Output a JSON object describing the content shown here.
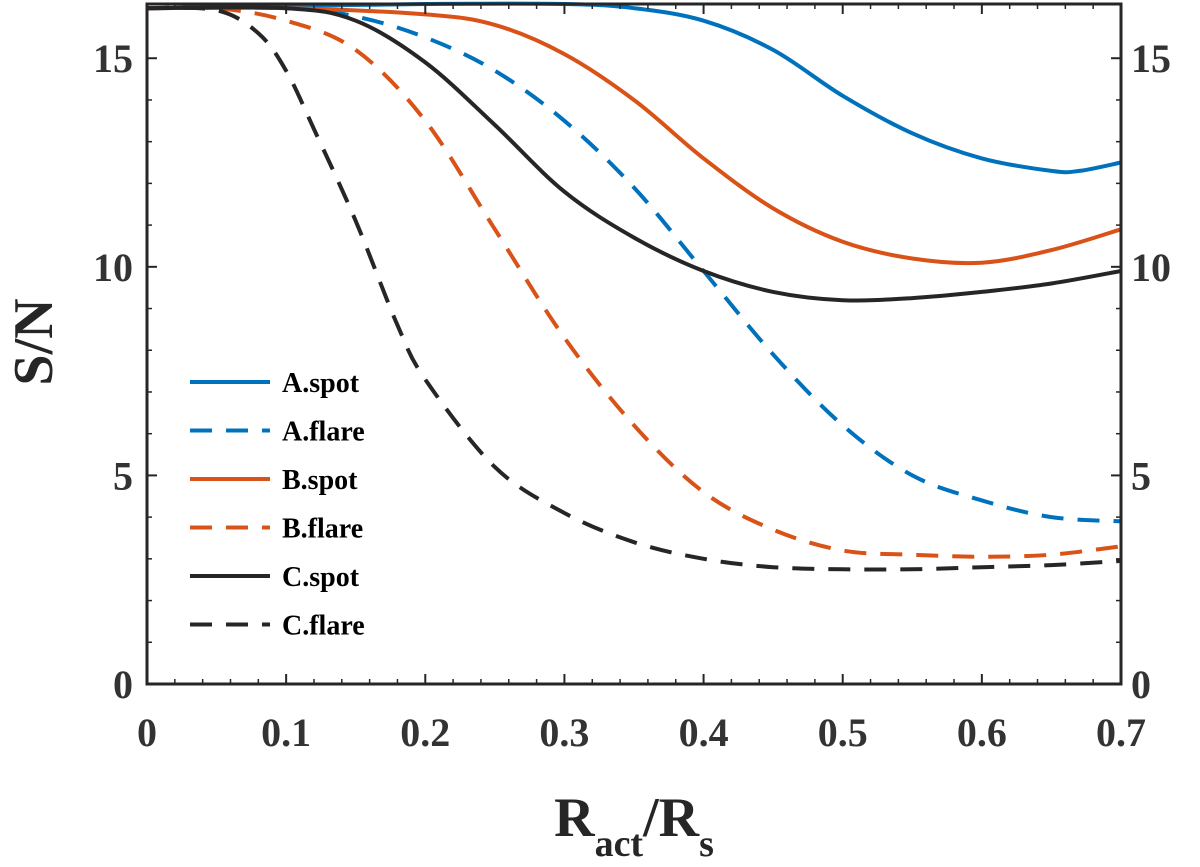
{
  "chart_data": {
    "type": "line",
    "title": "",
    "xlabel": {
      "main": "R",
      "main_sub": "act",
      "slash": "/R",
      "slash_sub": "s"
    },
    "ylabel": "S/N",
    "xlim": [
      0,
      0.7
    ],
    "ylim": [
      0,
      16.3
    ],
    "x_ticks": [
      0,
      0.1,
      0.2,
      0.3,
      0.4,
      0.5,
      0.6,
      0.7
    ],
    "x_tick_labels": [
      "0",
      "0.1",
      "0.2",
      "0.3",
      "0.4",
      "0.5",
      "0.6",
      "0.7"
    ],
    "y_ticks": [
      0,
      5,
      10,
      15
    ],
    "y_tick_labels": [
      "0",
      "5",
      "10",
      "15"
    ],
    "y_right_tick_labels": [
      "0",
      "5",
      "10",
      "15"
    ],
    "grid": false,
    "legend_position": "lower-left",
    "series": [
      {
        "name": "A.spot",
        "color": "#0072BD",
        "dash": "solid",
        "points": [
          [
            0,
            16.2
          ],
          [
            0.1,
            16.25
          ],
          [
            0.2,
            16.3
          ],
          [
            0.3,
            16.3
          ],
          [
            0.35,
            16.2
          ],
          [
            0.4,
            15.9
          ],
          [
            0.45,
            15.2
          ],
          [
            0.5,
            14.1
          ],
          [
            0.55,
            13.2
          ],
          [
            0.6,
            12.6
          ],
          [
            0.65,
            12.3
          ],
          [
            0.67,
            12.3
          ],
          [
            0.7,
            12.5
          ]
        ]
      },
      {
        "name": "A.flare",
        "color": "#0072BD",
        "dash": "dashed",
        "points": [
          [
            0,
            16.2
          ],
          [
            0.1,
            16.2
          ],
          [
            0.15,
            16.0
          ],
          [
            0.2,
            15.5
          ],
          [
            0.25,
            14.7
          ],
          [
            0.3,
            13.5
          ],
          [
            0.35,
            11.9
          ],
          [
            0.4,
            9.9
          ],
          [
            0.45,
            7.9
          ],
          [
            0.5,
            6.2
          ],
          [
            0.55,
            5.0
          ],
          [
            0.6,
            4.4
          ],
          [
            0.65,
            4.0
          ],
          [
            0.7,
            3.9
          ]
        ]
      },
      {
        "name": "B.spot",
        "color": "#D95319",
        "dash": "solid",
        "points": [
          [
            0,
            16.2
          ],
          [
            0.1,
            16.2
          ],
          [
            0.2,
            16.05
          ],
          [
            0.25,
            15.8
          ],
          [
            0.3,
            15.1
          ],
          [
            0.35,
            14.0
          ],
          [
            0.4,
            12.6
          ],
          [
            0.45,
            11.4
          ],
          [
            0.5,
            10.6
          ],
          [
            0.55,
            10.2
          ],
          [
            0.6,
            10.1
          ],
          [
            0.65,
            10.4
          ],
          [
            0.7,
            10.9
          ]
        ]
      },
      {
        "name": "B.flare",
        "color": "#D95319",
        "dash": "dashed",
        "points": [
          [
            0,
            16.2
          ],
          [
            0.05,
            16.2
          ],
          [
            0.1,
            15.9
          ],
          [
            0.15,
            15.2
          ],
          [
            0.2,
            13.5
          ],
          [
            0.25,
            10.9
          ],
          [
            0.3,
            8.3
          ],
          [
            0.35,
            6.2
          ],
          [
            0.4,
            4.6
          ],
          [
            0.45,
            3.7
          ],
          [
            0.5,
            3.2
          ],
          [
            0.55,
            3.1
          ],
          [
            0.6,
            3.05
          ],
          [
            0.65,
            3.1
          ],
          [
            0.7,
            3.3
          ]
        ]
      },
      {
        "name": "C.spot",
        "color": "#262626",
        "dash": "solid",
        "points": [
          [
            0,
            16.2
          ],
          [
            0.1,
            16.2
          ],
          [
            0.15,
            15.9
          ],
          [
            0.2,
            14.9
          ],
          [
            0.25,
            13.4
          ],
          [
            0.3,
            11.8
          ],
          [
            0.35,
            10.7
          ],
          [
            0.4,
            9.9
          ],
          [
            0.45,
            9.4
          ],
          [
            0.5,
            9.2
          ],
          [
            0.55,
            9.25
          ],
          [
            0.6,
            9.4
          ],
          [
            0.65,
            9.6
          ],
          [
            0.7,
            9.9
          ]
        ]
      },
      {
        "name": "C.flare",
        "color": "#262626",
        "dash": "dashed",
        "points": [
          [
            0,
            16.2
          ],
          [
            0.05,
            16.15
          ],
          [
            0.08,
            15.6
          ],
          [
            0.1,
            14.7
          ],
          [
            0.12,
            13.3
          ],
          [
            0.15,
            11.1
          ],
          [
            0.18,
            8.6
          ],
          [
            0.2,
            7.3
          ],
          [
            0.25,
            5.2
          ],
          [
            0.3,
            4.1
          ],
          [
            0.35,
            3.4
          ],
          [
            0.4,
            3.0
          ],
          [
            0.45,
            2.8
          ],
          [
            0.5,
            2.75
          ],
          [
            0.55,
            2.75
          ],
          [
            0.6,
            2.8
          ],
          [
            0.65,
            2.85
          ],
          [
            0.7,
            2.95
          ]
        ]
      }
    ]
  }
}
